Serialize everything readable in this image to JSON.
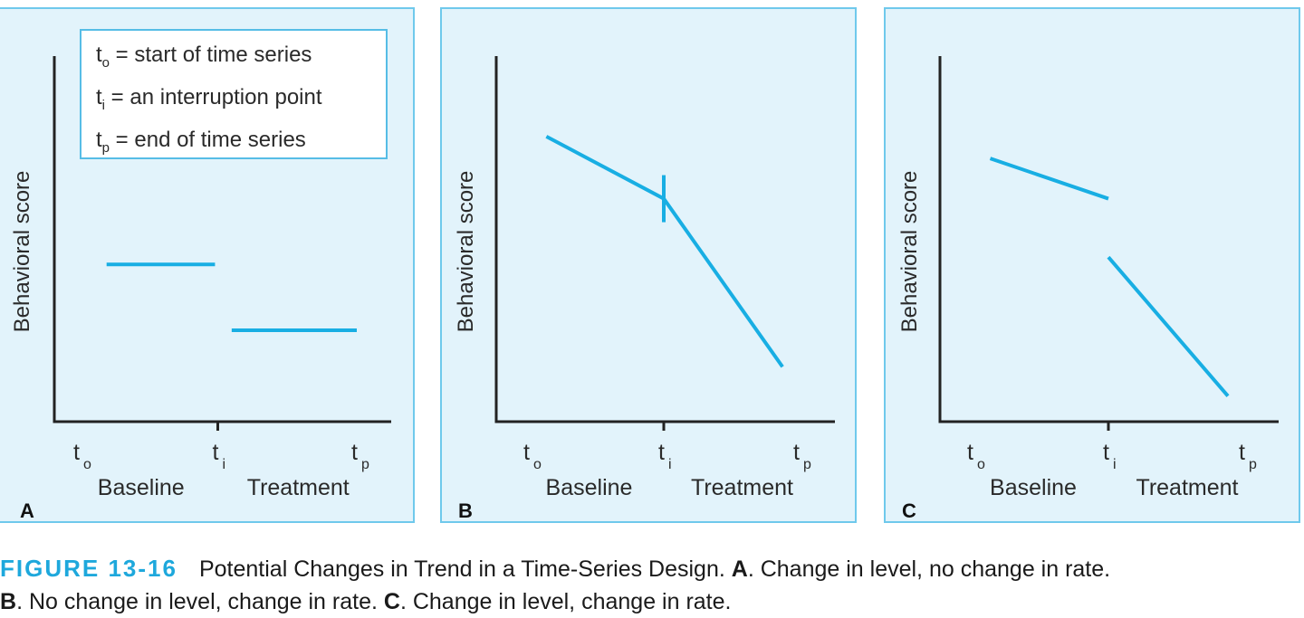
{
  "legend": {
    "rows": [
      {
        "sym": "t",
        "sub": "o",
        "text": " = start of time series"
      },
      {
        "sym": "t",
        "sub": "i",
        "text": " = an interruption point"
      },
      {
        "sym": "t",
        "sub": "p",
        "text": " = end of time series"
      }
    ]
  },
  "chart_data": [
    {
      "type": "line",
      "panel": "A",
      "ylabel": "Behavioral score",
      "xticks": [
        {
          "label": "t",
          "sub": "o",
          "x": 0
        },
        {
          "label": "t",
          "sub": "i",
          "x": 1
        },
        {
          "label": "t",
          "sub": "p",
          "x": 2
        }
      ],
      "phases": [
        "Baseline",
        "Treatment"
      ],
      "xlim": [
        0,
        2
      ],
      "ylim": [
        0,
        10
      ],
      "series": [
        {
          "name": "baseline",
          "x": [
            0.2,
            0.98
          ],
          "y": [
            4.3,
            4.3
          ]
        },
        {
          "name": "treatment",
          "x": [
            1.1,
            2.0
          ],
          "y": [
            2.5,
            2.5
          ]
        }
      ],
      "markers": []
    },
    {
      "type": "line",
      "panel": "B",
      "ylabel": "Behavioral score",
      "xticks": [
        {
          "label": "t",
          "sub": "o",
          "x": 0
        },
        {
          "label": "t",
          "sub": "i",
          "x": 1
        },
        {
          "label": "t",
          "sub": "p",
          "x": 2
        }
      ],
      "phases": [
        "Baseline",
        "Treatment"
      ],
      "xlim": [
        0,
        2
      ],
      "ylim": [
        0,
        10
      ],
      "series": [
        {
          "name": "baseline",
          "x": [
            0.13,
            1.0
          ],
          "y": [
            7.8,
            6.1
          ]
        },
        {
          "name": "treatment",
          "x": [
            1.0,
            1.88
          ],
          "y": [
            6.1,
            1.5
          ]
        }
      ],
      "markers": [
        {
          "x": 1.0,
          "y": 6.1
        }
      ]
    },
    {
      "type": "line",
      "panel": "C",
      "ylabel": "Behavioral score",
      "xticks": [
        {
          "label": "t",
          "sub": "o",
          "x": 0
        },
        {
          "label": "t",
          "sub": "i",
          "x": 1
        },
        {
          "label": "t",
          "sub": "p",
          "x": 2
        }
      ],
      "phases": [
        "Baseline",
        "Treatment"
      ],
      "xlim": [
        0,
        2
      ],
      "ylim": [
        0,
        10
      ],
      "series": [
        {
          "name": "baseline",
          "x": [
            0.13,
            1.0
          ],
          "y": [
            7.2,
            6.1
          ]
        },
        {
          "name": "treatment",
          "x": [
            1.0,
            1.88
          ],
          "y": [
            4.5,
            0.7
          ]
        }
      ],
      "markers": []
    }
  ],
  "caption": {
    "figure_label": "FIGURE 13-16",
    "text": "Potential Changes in Trend in a Time-Series Design.",
    "a_label": "A",
    "a_text": ". Change in level, no change in rate.",
    "b_label": "B",
    "b_text": ". No change in level, change in rate.",
    "c_label": "C",
    "c_text": ". Change in level, change in rate."
  },
  "colors": {
    "series": "#18aee3",
    "panel_bg": "#e2f3fb",
    "panel_border": "#6fc9ec",
    "figure_label": "#1ea8dc"
  }
}
